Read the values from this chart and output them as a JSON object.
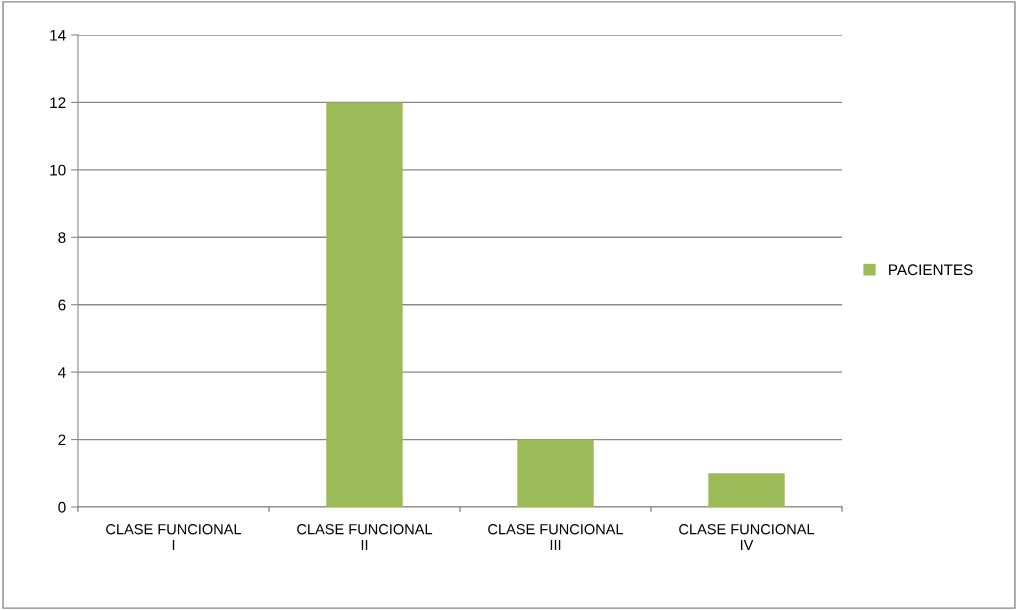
{
  "chart_data": {
    "type": "bar",
    "categories": [
      "CLASE FUNCIONAL\nI",
      "CLASE FUNCIONAL\nII",
      "CLASE FUNCIONAL\nIII",
      "CLASE FUNCIONAL\nIV"
    ],
    "series": [
      {
        "name": "PACIENTES",
        "color": "#9bbb59",
        "values": [
          0,
          12,
          2,
          1
        ]
      }
    ],
    "ylim": [
      0,
      14
    ],
    "yticks": [
      0,
      2,
      4,
      6,
      8,
      10,
      12,
      14
    ],
    "grid": "y",
    "legend": "right"
  }
}
